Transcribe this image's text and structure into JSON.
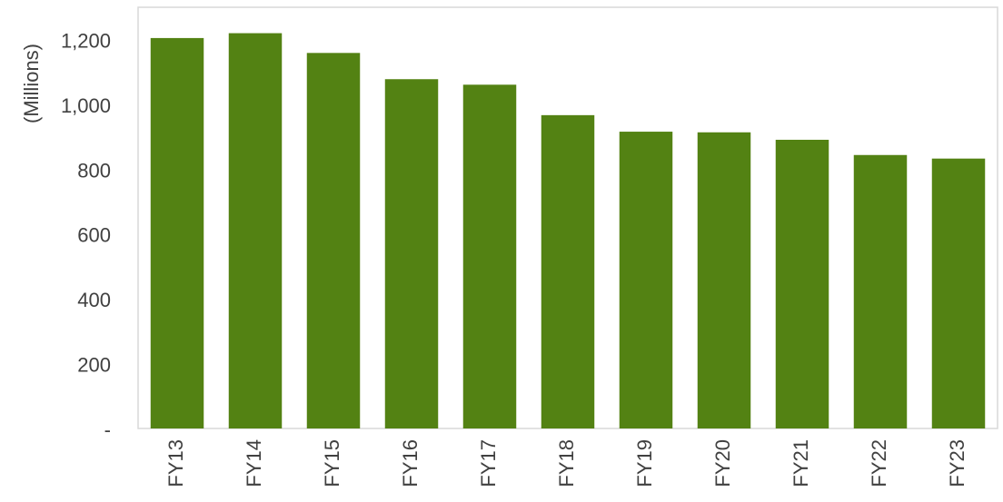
{
  "chart_data": {
    "type": "bar",
    "y_label": "(Millions)",
    "categories": [
      "FY13",
      "FY14",
      "FY15",
      "FY16",
      "FY17",
      "FY18",
      "FY19",
      "FY20",
      "FY21",
      "FY22",
      "FY23"
    ],
    "values": [
      1205,
      1220,
      1159,
      1078,
      1061,
      967,
      916,
      914,
      891,
      844,
      833
    ],
    "color": "#538213",
    "ylim": [
      0,
      1300
    ],
    "yticks": [
      {
        "value": 0,
        "label": "-"
      },
      200,
      400,
      600,
      800,
      {
        "value": 1000,
        "label": "1,000"
      },
      {
        "value": 1200,
        "label": "1,200"
      }
    ],
    "grid": false
  }
}
